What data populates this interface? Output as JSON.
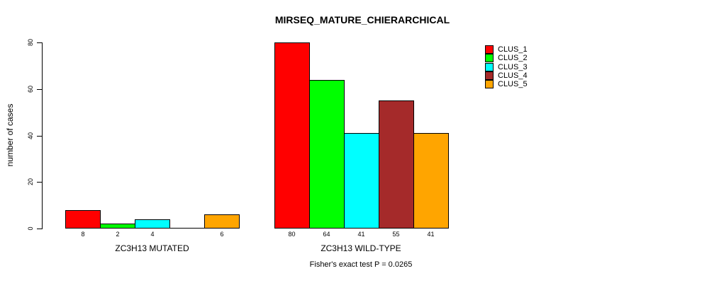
{
  "chart_data": {
    "type": "bar",
    "title": "MIRSEQ_MATURE_CHIERARCHICAL",
    "ylabel": "number of cases",
    "ylim": [
      0,
      80
    ],
    "yticks": [
      0,
      20,
      40,
      60,
      80
    ],
    "grid": false,
    "groups": [
      "ZC3H13 MUTATED",
      "ZC3H13 WILD-TYPE"
    ],
    "series": [
      {
        "name": "CLUS_1",
        "color": "#ff0000",
        "values": [
          8,
          80
        ]
      },
      {
        "name": "CLUS_2",
        "color": "#00ff00",
        "values": [
          2,
          64
        ]
      },
      {
        "name": "CLUS_3",
        "color": "#00ffff",
        "values": [
          4,
          41
        ]
      },
      {
        "name": "CLUS_4",
        "color": "#a52a2a",
        "values": [
          0,
          55
        ]
      },
      {
        "name": "CLUS_5",
        "color": "#ffa500",
        "values": [
          6,
          41
        ]
      }
    ],
    "bar_value_labels": [
      [
        "8",
        "2",
        "4",
        "",
        "6"
      ],
      [
        "80",
        "64",
        "41",
        "55",
        "41"
      ]
    ],
    "legend": {
      "position": "topright",
      "entries": [
        "CLUS_1",
        "CLUS_2",
        "CLUS_3",
        "CLUS_4",
        "CLUS_5"
      ]
    },
    "caption": "Fisher's exact test P = 0.0265"
  }
}
